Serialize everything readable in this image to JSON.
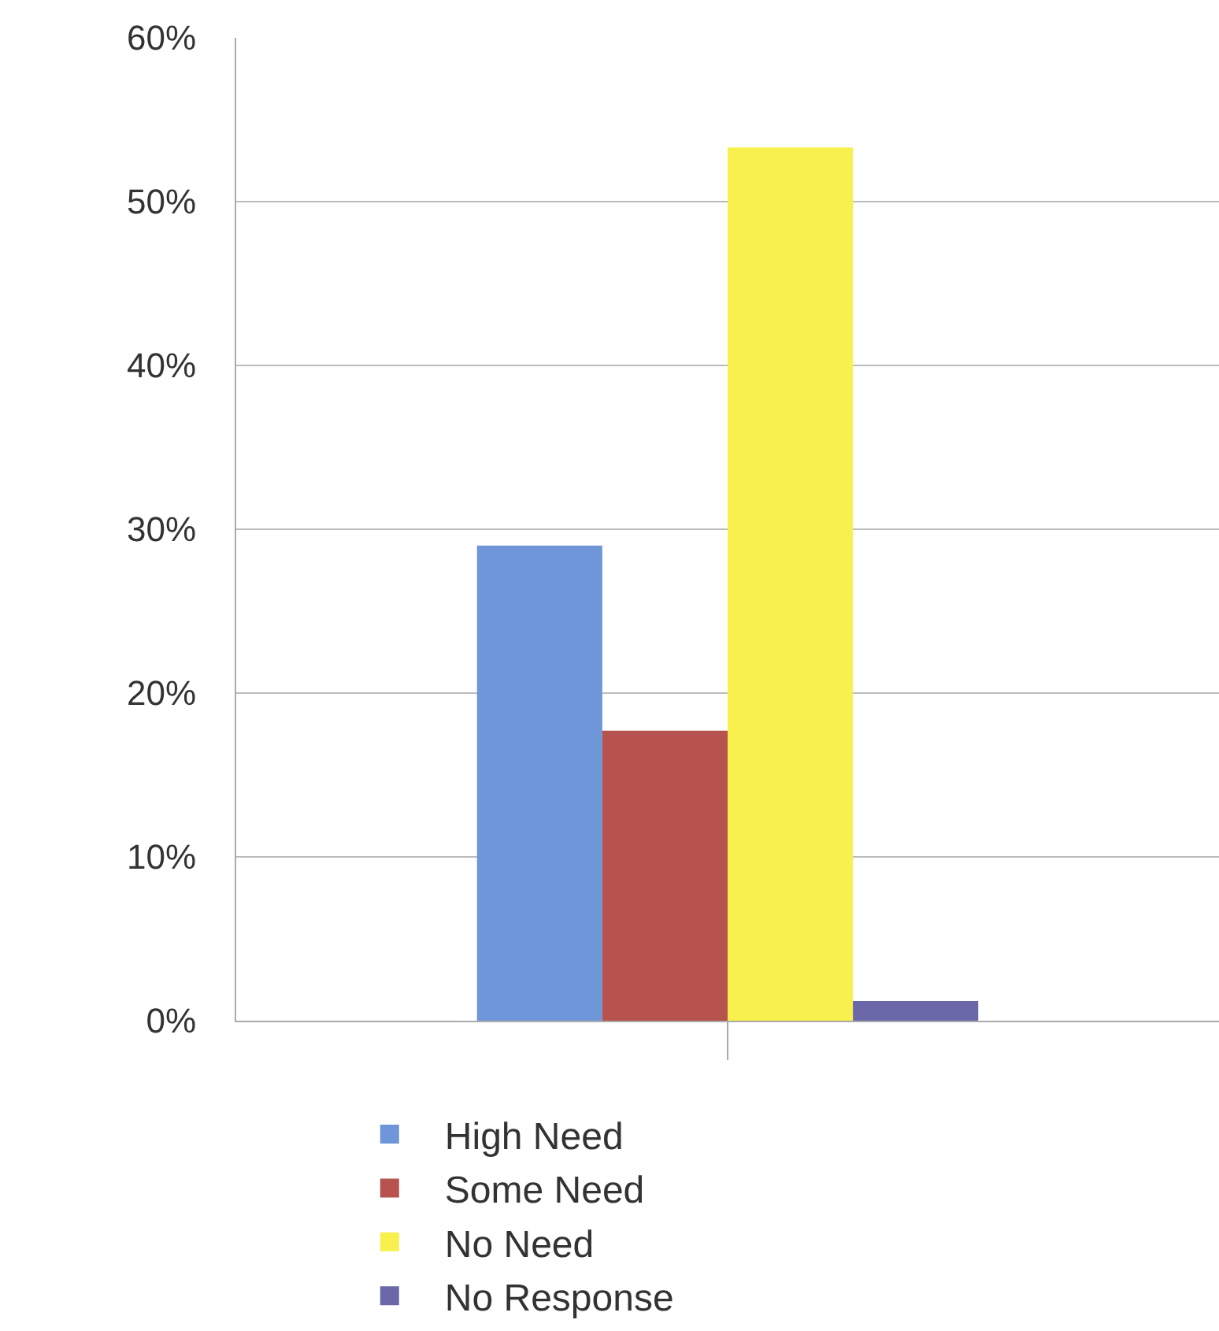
{
  "chart_data": {
    "type": "bar",
    "categories": [
      null
    ],
    "series": [
      {
        "name": "High Need",
        "color": "#6f96d8",
        "values": [
          29
        ]
      },
      {
        "name": "Some Need",
        "color": "#b8524e",
        "values": [
          17.7
        ]
      },
      {
        "name": "No Need",
        "color": "#f8f04c",
        "values": [
          53.3
        ]
      },
      {
        "name": "No Response",
        "color": "#6a68a8",
        "values": [
          1.2
        ]
      }
    ],
    "ylim": [
      0,
      60
    ],
    "yticks": [
      {
        "value": 0,
        "label": "0%"
      },
      {
        "value": 10,
        "label": "10%"
      },
      {
        "value": 20,
        "label": "20%"
      },
      {
        "value": 30,
        "label": "30%"
      },
      {
        "value": 40,
        "label": "40%"
      },
      {
        "value": 50,
        "label": "50%"
      },
      {
        "value": 60,
        "label": "60%"
      }
    ],
    "grid": "y",
    "legend": "bottom"
  }
}
